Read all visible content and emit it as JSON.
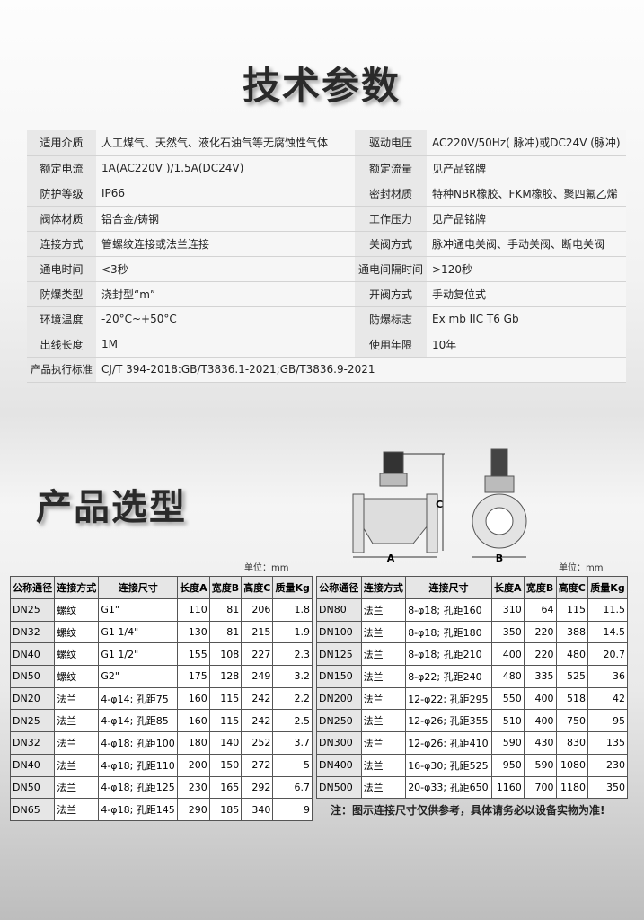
{
  "title_specs": "技术参数",
  "title_models": "产品选型",
  "specs": [
    [
      "适用介质",
      "人工煤气、天然气、液化石油气等无腐蚀性气体",
      "驱动电压",
      "AC220V/50Hz( 脉冲)或DC24V (脉冲)"
    ],
    [
      "额定电流",
      "1A(AC220V )/1.5A(DC24V)",
      "额定流量",
      "见产品铭牌"
    ],
    [
      "防护等级",
      "IP66",
      "密封材质",
      "特种NBR橡胶、FKM橡胶、聚四氟乙烯"
    ],
    [
      "阀体材质",
      "铝合金/铸钢",
      "工作压力",
      "见产品铭牌"
    ],
    [
      "连接方式",
      "管螺纹连接或法兰连接",
      "关阀方式",
      "脉冲通电关阀、手动关阀、断电关阀"
    ],
    [
      "通电时间",
      "<3秒",
      "通电间隔时间",
      ">120秒"
    ],
    [
      "防爆类型",
      "浇封型“m”",
      "开阀方式",
      "手动复位式"
    ],
    [
      "环境温度",
      "-20°C~+50°C",
      "防爆标志",
      "Ex mb IIC T6 Gb"
    ],
    [
      "出线长度",
      "1M",
      "使用年限",
      "10年"
    ]
  ],
  "standard": {
    "label": "产品执行标准",
    "value": "CJ/T 394-2018:GB/T3836.1-2021;GB/T3836.9-2021"
  },
  "drawing": {
    "labels": [
      "A",
      "B",
      "C"
    ]
  },
  "unit": "单位：mm",
  "headers": [
    "公称通径",
    "连接方式",
    "连接尺寸",
    "长度A",
    "宽度B",
    "高度C",
    "质量Kg"
  ],
  "table_left": [
    [
      "DN25",
      "螺纹",
      "G1\"",
      "110",
      "81",
      "206",
      "1.8"
    ],
    [
      "DN32",
      "螺纹",
      "G1 1/4\"",
      "130",
      "81",
      "215",
      "1.9"
    ],
    [
      "DN40",
      "螺纹",
      "G1 1/2\"",
      "155",
      "108",
      "227",
      "2.3"
    ],
    [
      "DN50",
      "螺纹",
      "G2\"",
      "175",
      "128",
      "249",
      "3.2"
    ],
    [
      "DN20",
      "法兰",
      "4-φ14; 孔距75",
      "160",
      "115",
      "242",
      "2.2"
    ],
    [
      "DN25",
      "法兰",
      "4-φ14; 孔距85",
      "160",
      "115",
      "242",
      "2.5"
    ],
    [
      "DN32",
      "法兰",
      "4-φ18; 孔距100",
      "180",
      "140",
      "252",
      "3.7"
    ],
    [
      "DN40",
      "法兰",
      "4-φ18; 孔距110",
      "200",
      "150",
      "272",
      "5"
    ],
    [
      "DN50",
      "法兰",
      "4-φ18; 孔距125",
      "230",
      "165",
      "292",
      "6.7"
    ],
    [
      "DN65",
      "法兰",
      "4-φ18; 孔距145",
      "290",
      "185",
      "340",
      "9"
    ]
  ],
  "table_right": [
    [
      "DN80",
      "法兰",
      "8-φ18; 孔距160",
      "310",
      "64",
      "115",
      "11.5"
    ],
    [
      "DN100",
      "法兰",
      "8-φ18; 孔距180",
      "350",
      "220",
      "388",
      "14.5"
    ],
    [
      "DN125",
      "法兰",
      "8-φ18; 孔距210",
      "400",
      "220",
      "480",
      "20.7"
    ],
    [
      "DN150",
      "法兰",
      "8-φ22; 孔距240",
      "480",
      "335",
      "525",
      "36"
    ],
    [
      "DN200",
      "法兰",
      "12-φ22; 孔距295",
      "550",
      "400",
      "518",
      "42"
    ],
    [
      "DN250",
      "法兰",
      "12-φ26; 孔距355",
      "510",
      "400",
      "750",
      "95"
    ],
    [
      "DN300",
      "法兰",
      "12-φ26; 孔距410",
      "590",
      "430",
      "830",
      "135"
    ],
    [
      "DN400",
      "法兰",
      "16-φ30; 孔距525",
      "950",
      "590",
      "1080",
      "230"
    ],
    [
      "DN500",
      "法兰",
      "20-φ33; 孔距650",
      "1160",
      "700",
      "1180",
      "350"
    ]
  ],
  "note": "注：图示连接尺寸仅供参考，具体请务必以设备实物为准!"
}
